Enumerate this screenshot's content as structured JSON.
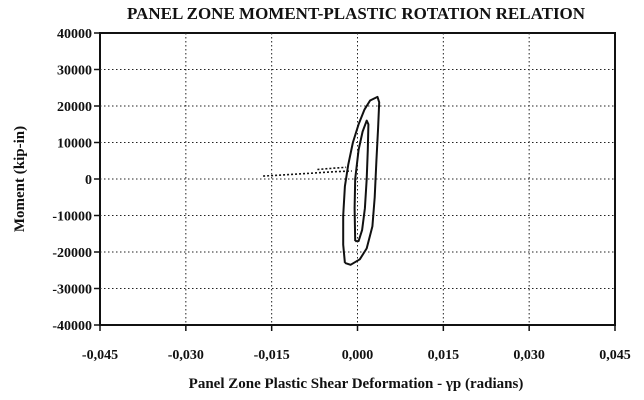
{
  "chart_data": {
    "type": "line",
    "title": "PANEL ZONE MOMENT-PLASTIC ROTATION RELATION",
    "xlabel": "Panel Zone Plastic Shear Deformation - γp (radians)",
    "ylabel": "Moment (kip-in)",
    "xlim": [
      -0.045,
      0.045
    ],
    "ylim": [
      -40000,
      40000
    ],
    "x_ticks": [
      -0.045,
      -0.03,
      -0.015,
      0.0,
      0.015,
      0.03,
      0.045
    ],
    "x_tick_labels": [
      "-0,045",
      "-0,030",
      "-0,015",
      "0,000",
      "0,015",
      "0,030",
      "0,045"
    ],
    "y_ticks": [
      40000,
      30000,
      20000,
      10000,
      0,
      -10000,
      -20000,
      -30000,
      -40000
    ],
    "y_tick_labels": [
      "40000",
      "30000",
      "20000",
      "10000",
      "0",
      "-10000",
      "-20000",
      "-30000",
      "-40000"
    ],
    "grid": true,
    "series": [
      {
        "points": [
          [
            -0.0022,
            -23000
          ],
          [
            -0.0025,
            -18000
          ],
          [
            -0.0025,
            -10000
          ],
          [
            -0.0022,
            -2000
          ],
          [
            -0.0016,
            4000
          ],
          [
            -0.0008,
            10000
          ],
          [
            0.0002,
            15000
          ],
          [
            0.0012,
            19000
          ],
          [
            0.0022,
            21500
          ],
          [
            0.0035,
            22500
          ],
          [
            0.0038,
            21000
          ],
          [
            0.0036,
            14000
          ],
          [
            0.0033,
            5000
          ],
          [
            0.003,
            -5000
          ],
          [
            0.0026,
            -13000
          ],
          [
            0.0016,
            -19000
          ],
          [
            0.0004,
            -22000
          ],
          [
            -0.0012,
            -23500
          ],
          [
            -0.0022,
            -23000
          ]
        ]
      },
      {
        "points": [
          [
            -0.0004,
            -17000
          ],
          [
            -0.0005,
            -8000
          ],
          [
            -0.0004,
            0
          ],
          [
            0.0002,
            8000
          ],
          [
            0.0009,
            13000
          ],
          [
            0.0016,
            16000
          ],
          [
            0.0019,
            15000
          ],
          [
            0.0018,
            8000
          ],
          [
            0.0016,
            0
          ],
          [
            0.0013,
            -8000
          ],
          [
            0.0008,
            -14000
          ],
          [
            0.0002,
            -17000
          ],
          [
            -0.0004,
            -17000
          ]
        ]
      },
      {
        "points": [
          [
            -0.0165,
            800
          ],
          [
            -0.012,
            1200
          ],
          [
            -0.008,
            1600
          ],
          [
            -0.004,
            2000
          ],
          [
            -0.001,
            2200
          ]
        ]
      },
      {
        "points": [
          [
            -0.007,
            2600
          ],
          [
            -0.004,
            3000
          ],
          [
            -0.002,
            3200
          ]
        ]
      }
    ]
  }
}
